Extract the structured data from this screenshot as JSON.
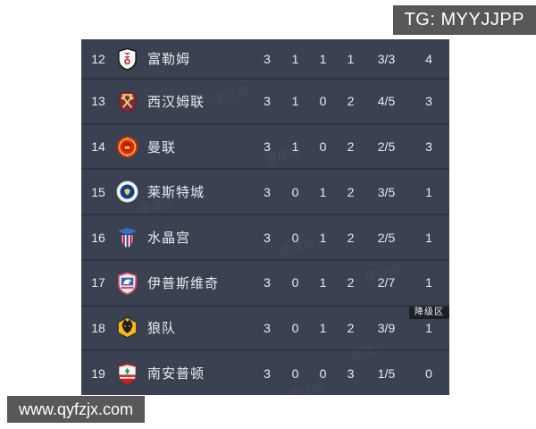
{
  "tg_label": {
    "text": "TG: MYYJJPP",
    "bg": "#58585a",
    "color": "#ffffff"
  },
  "site_label": {
    "text": "www.qyfzjx.com",
    "bg": "#58585a",
    "color": "#ffffff"
  },
  "watermark": {
    "text": "懂球帝"
  },
  "table": {
    "bg": "#3a4150",
    "separator_color": "#2d333f",
    "text_color": "#e9ebef",
    "relegation_tag": {
      "text": "降级区",
      "bg": "#1b2029"
    },
    "rows": [
      {
        "pos": "12",
        "team": "富勒姆",
        "badge": "fulham-crest",
        "stats": [
          "3",
          "1",
          "1",
          "1",
          "3/3",
          "4"
        ]
      },
      {
        "pos": "13",
        "team": "西汉姆联",
        "badge": "west-ham-crest",
        "stats": [
          "3",
          "1",
          "0",
          "2",
          "4/5",
          "3"
        ]
      },
      {
        "pos": "14",
        "team": "曼联",
        "badge": "man-united-crest",
        "stats": [
          "3",
          "1",
          "0",
          "2",
          "2/5",
          "3"
        ]
      },
      {
        "pos": "15",
        "team": "莱斯特城",
        "badge": "leicester-crest",
        "stats": [
          "3",
          "0",
          "1",
          "2",
          "3/5",
          "1"
        ]
      },
      {
        "pos": "16",
        "team": "水晶宫",
        "badge": "crystal-palace-crest",
        "stats": [
          "3",
          "0",
          "1",
          "2",
          "2/5",
          "1"
        ]
      },
      {
        "pos": "17",
        "team": "伊普斯维奇",
        "badge": "ipswich-crest",
        "stats": [
          "3",
          "0",
          "1",
          "2",
          "2/7",
          "1"
        ]
      },
      {
        "pos": "18",
        "team": "狼队",
        "badge": "wolves-crest",
        "stats": [
          "3",
          "0",
          "1",
          "2",
          "3/9",
          "1"
        ],
        "relegation": true
      },
      {
        "pos": "19",
        "team": "南安普顿",
        "badge": "southampton-crest",
        "stats": [
          "3",
          "0",
          "0",
          "3",
          "1/5",
          "0"
        ]
      }
    ]
  }
}
